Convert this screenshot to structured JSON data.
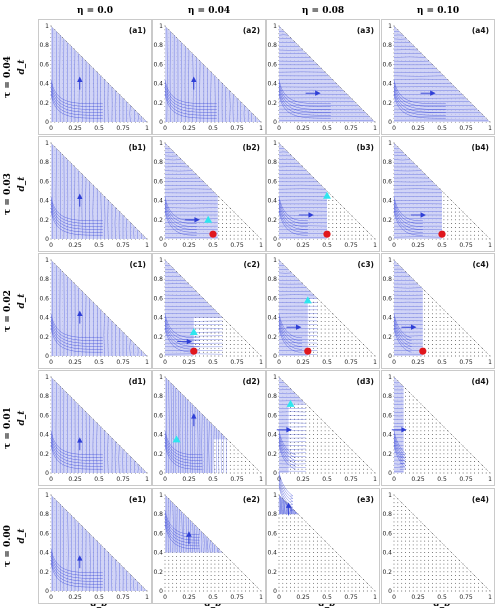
{
  "figure": {
    "column_headers": [
      "η = 0.0",
      "η = 0.04",
      "η = 0.08",
      "η = 0.10"
    ],
    "row_headers": [
      "τ = 0.04",
      "τ = 0.03",
      "τ = 0.02",
      "τ = 0.01",
      "τ = 0.00"
    ],
    "x_axis_label": "d_b",
    "y_axis_label": "d_t",
    "colors": {
      "flow": "#2f3fd6",
      "fill": "#c9cdf4",
      "cyan_marker": "#2ee6ee",
      "red_marker": "#e0171d",
      "dots": "#333333"
    }
  },
  "chart_data": {
    "type": "phase-portrait-grid",
    "x_ticks": [
      "0",
      "0.25",
      "0.5",
      "0.75",
      "1"
    ],
    "y_ticks": [
      "0",
      "0.2",
      "0.4",
      "0.6",
      "0.8",
      "1"
    ],
    "xlim": [
      0,
      1
    ],
    "ylim": [
      0,
      1
    ],
    "domain": "triangle d_b + d_t <= 1",
    "panels": [
      {
        "label": "(a1)",
        "tau": 0.04,
        "eta": 0.0,
        "region": "full",
        "arrow": [
          0.3,
          0.4,
          "up"
        ],
        "cyan": null,
        "red": null
      },
      {
        "label": "(a2)",
        "tau": 0.04,
        "eta": 0.04,
        "region": "full",
        "arrow": [
          0.3,
          0.4,
          "up"
        ],
        "cyan": null,
        "red": null
      },
      {
        "label": "(a3)",
        "tau": 0.04,
        "eta": 0.08,
        "region": "full",
        "arrow": [
          0.35,
          0.3,
          "right"
        ],
        "cyan": null,
        "red": null
      },
      {
        "label": "(a4)",
        "tau": 0.04,
        "eta": 0.1,
        "region": "full",
        "arrow": [
          0.35,
          0.3,
          "right"
        ],
        "cyan": null,
        "red": null
      },
      {
        "label": "(b1)",
        "tau": 0.03,
        "eta": 0.0,
        "region": "full",
        "arrow": [
          0.3,
          0.4,
          "up"
        ],
        "cyan": null,
        "red": null
      },
      {
        "label": "(b2)",
        "tau": 0.03,
        "eta": 0.04,
        "region": "partial",
        "cut": [
          0.55,
          0.6
        ],
        "arrow": [
          0.28,
          0.2,
          "right"
        ],
        "cyan": [
          0.45,
          0.2
        ],
        "red": [
          0.5,
          0.05
        ]
      },
      {
        "label": "(b3)",
        "tau": 0.03,
        "eta": 0.08,
        "region": "partial",
        "cut": [
          0.5,
          0.5
        ],
        "arrow": [
          0.28,
          0.25,
          "right"
        ],
        "cyan": [
          0.5,
          0.45
        ],
        "red": [
          0.5,
          0.05
        ]
      },
      {
        "label": "(b4)",
        "tau": 0.03,
        "eta": 0.1,
        "region": "partial",
        "cut": [
          0.5,
          0.5
        ],
        "arrow": [
          0.25,
          0.25,
          "right"
        ],
        "cyan": null,
        "red": [
          0.5,
          0.05
        ]
      },
      {
        "label": "(c1)",
        "tau": 0.02,
        "eta": 0.0,
        "region": "full",
        "arrow": [
          0.3,
          0.4,
          "up"
        ],
        "cyan": null,
        "red": null
      },
      {
        "label": "(c2)",
        "tau": 0.02,
        "eta": 0.04,
        "region": "partial",
        "cut": [
          0.3,
          0.4
        ],
        "arrow": [
          0.2,
          0.15,
          "right"
        ],
        "cyan": [
          0.3,
          0.25
        ],
        "red": [
          0.3,
          0.05
        ]
      },
      {
        "label": "(c3)",
        "tau": 0.02,
        "eta": 0.08,
        "region": "partial",
        "cut": [
          0.3,
          0.6
        ],
        "arrow": [
          0.15,
          0.3,
          "right"
        ],
        "cyan": [
          0.3,
          0.58
        ],
        "red": [
          0.3,
          0.05
        ]
      },
      {
        "label": "(c4)",
        "tau": 0.02,
        "eta": 0.1,
        "region": "partial",
        "cut": [
          0.3,
          0.7
        ],
        "arrow": [
          0.15,
          0.3,
          "right"
        ],
        "cyan": null,
        "red": [
          0.3,
          0.05
        ]
      },
      {
        "label": "(d1)",
        "tau": 0.01,
        "eta": 0.0,
        "region": "full",
        "arrow": [
          0.3,
          0.3,
          "up"
        ],
        "cyan": null,
        "red": null
      },
      {
        "label": "(d2)",
        "tau": 0.01,
        "eta": 0.04,
        "region": "partial",
        "cut": [
          0.5,
          0.35
        ],
        "arrow": [
          0.3,
          0.55,
          "up"
        ],
        "cyan": [
          0.12,
          0.35
        ],
        "red": null
      },
      {
        "label": "(d3)",
        "tau": 0.01,
        "eta": 0.08,
        "region": "partial",
        "cut": [
          0.1,
          0.72
        ],
        "arrow": [
          0.05,
          0.45,
          "right"
        ],
        "cyan": [
          0.12,
          0.72
        ],
        "red": null
      },
      {
        "label": "(d4)",
        "tau": 0.01,
        "eta": 0.1,
        "region": "partial",
        "cut": [
          0.1,
          0.9
        ],
        "arrow": [
          0.05,
          0.45,
          "right"
        ],
        "cyan": null,
        "red": null
      },
      {
        "label": "(e1)",
        "tau": 0.0,
        "eta": 0.0,
        "region": "full",
        "arrow": [
          0.3,
          0.3,
          "up"
        ],
        "cyan": null,
        "red": null
      },
      {
        "label": "(e2)",
        "tau": 0.0,
        "eta": 0.04,
        "region": "top",
        "cut": [
          0.5,
          0.4
        ],
        "arrow": [
          0.25,
          0.55,
          "up"
        ],
        "cyan": null,
        "red": null
      },
      {
        "label": "(e3)",
        "tau": 0.0,
        "eta": 0.08,
        "region": "top",
        "cut": [
          0.2,
          0.8
        ],
        "arrow": [
          0.1,
          0.85,
          "up"
        ],
        "cyan": null,
        "red": null
      },
      {
        "label": "(e4)",
        "tau": 0.0,
        "eta": 0.1,
        "region": "none",
        "arrow": null,
        "cyan": null,
        "red": null
      }
    ]
  }
}
